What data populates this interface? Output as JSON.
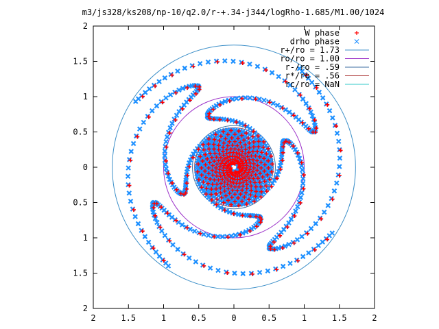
{
  "chart_data": {
    "type": "scatter",
    "title": "m3/js328/ks208/np-10/q2.0/r-+.34-j344/logRho-1.685/M1.00/1024",
    "xlim": [
      -2,
      2
    ],
    "ylim": [
      -2,
      2
    ],
    "x_ticks": [
      -2,
      -1.5,
      -1,
      -0.5,
      0,
      0.5,
      1,
      1.5,
      2
    ],
    "x_tick_labels": [
      "2",
      "1.5",
      "1",
      "0.5",
      "0",
      "0.5",
      "1",
      "1.5",
      "2"
    ],
    "y_ticks": [
      2,
      1.5,
      1,
      0.5,
      0,
      -0.5,
      -1,
      -1.5,
      -2
    ],
    "y_tick_labels": [
      "2",
      "1.5",
      "1",
      "0.5",
      "0",
      "0.5",
      "1",
      "1.5",
      "2"
    ],
    "grid": false,
    "legend_position": "top-right",
    "series": [
      {
        "name": "W phase",
        "kind": "points",
        "marker": "plus",
        "color": "#ff0000"
      },
      {
        "name": "drho phase",
        "kind": "points",
        "marker": "cross",
        "color": "#1e90ff"
      }
    ],
    "circles": [
      {
        "name": "r+/ro = 1.73",
        "r": 1.73,
        "color": "#3c8fc8"
      },
      {
        "name": "ro/ro = 1.00",
        "r": 1.0,
        "color": "#9b30c8"
      },
      {
        "name": "r-/ro = .59",
        "r": 0.59,
        "color": "#3c6ea0"
      },
      {
        "name": "r*/ro = .56",
        "r": 0.56,
        "color": "#b04040"
      },
      {
        "name": "rc/ro = NaN",
        "r": null,
        "color": "#30c8c8"
      }
    ],
    "spiral": {
      "arms": 4,
      "phase_offsets_deg": [
        0,
        90,
        180,
        270
      ],
      "inner_r": 0.06,
      "inner_end_r": 0.56,
      "inner_turns": 2.4,
      "outer_end_r": 1.68
    }
  }
}
